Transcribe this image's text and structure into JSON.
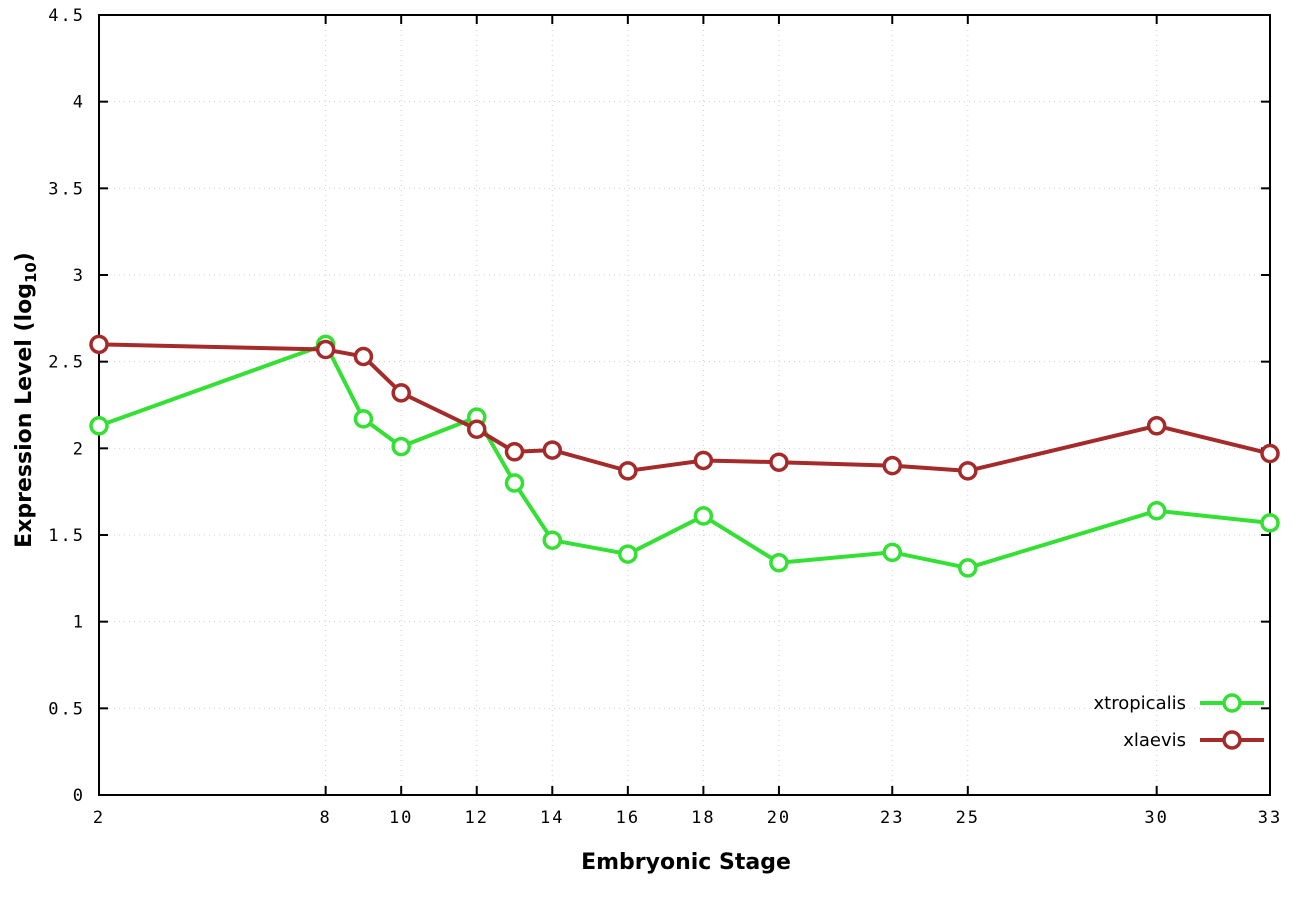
{
  "chart_data": {
    "type": "line",
    "title": "",
    "xlabel": "Embryonic Stage",
    "ylabel": "Expression Level (log10)",
    "ylabel_main": "Expression Level (log",
    "ylabel_sub": "10",
    "ylabel_close": ")",
    "x": [
      2,
      8,
      9,
      10,
      12,
      13,
      14,
      16,
      18,
      20,
      23,
      25,
      30,
      33
    ],
    "series": [
      {
        "name": "xtropicalis",
        "color": "#33e033",
        "values": [
          2.13,
          2.6,
          2.17,
          2.01,
          2.18,
          1.8,
          1.47,
          1.39,
          1.61,
          1.34,
          1.4,
          1.31,
          1.64,
          1.57
        ]
      },
      {
        "name": "xlaevis",
        "color": "#a52a2a",
        "values": [
          2.6,
          2.57,
          2.53,
          2.32,
          2.11,
          1.98,
          1.99,
          1.87,
          1.93,
          1.92,
          1.9,
          1.87,
          2.13,
          1.97
        ]
      }
    ],
    "xticks": [
      2,
      8,
      10,
      12,
      14,
      16,
      18,
      20,
      23,
      25,
      30,
      33
    ],
    "yticks": [
      0,
      0.5,
      1,
      1.5,
      2,
      2.5,
      3,
      3.5,
      4,
      4.5
    ],
    "xlim": [
      2,
      33
    ],
    "ylim": [
      0,
      4.5
    ],
    "grid": true,
    "legend_position": "bottom-right",
    "background_color": "#ffffff",
    "border_color": "#000000",
    "grid_color": "#d0d0d0",
    "marker": "open-circle"
  }
}
